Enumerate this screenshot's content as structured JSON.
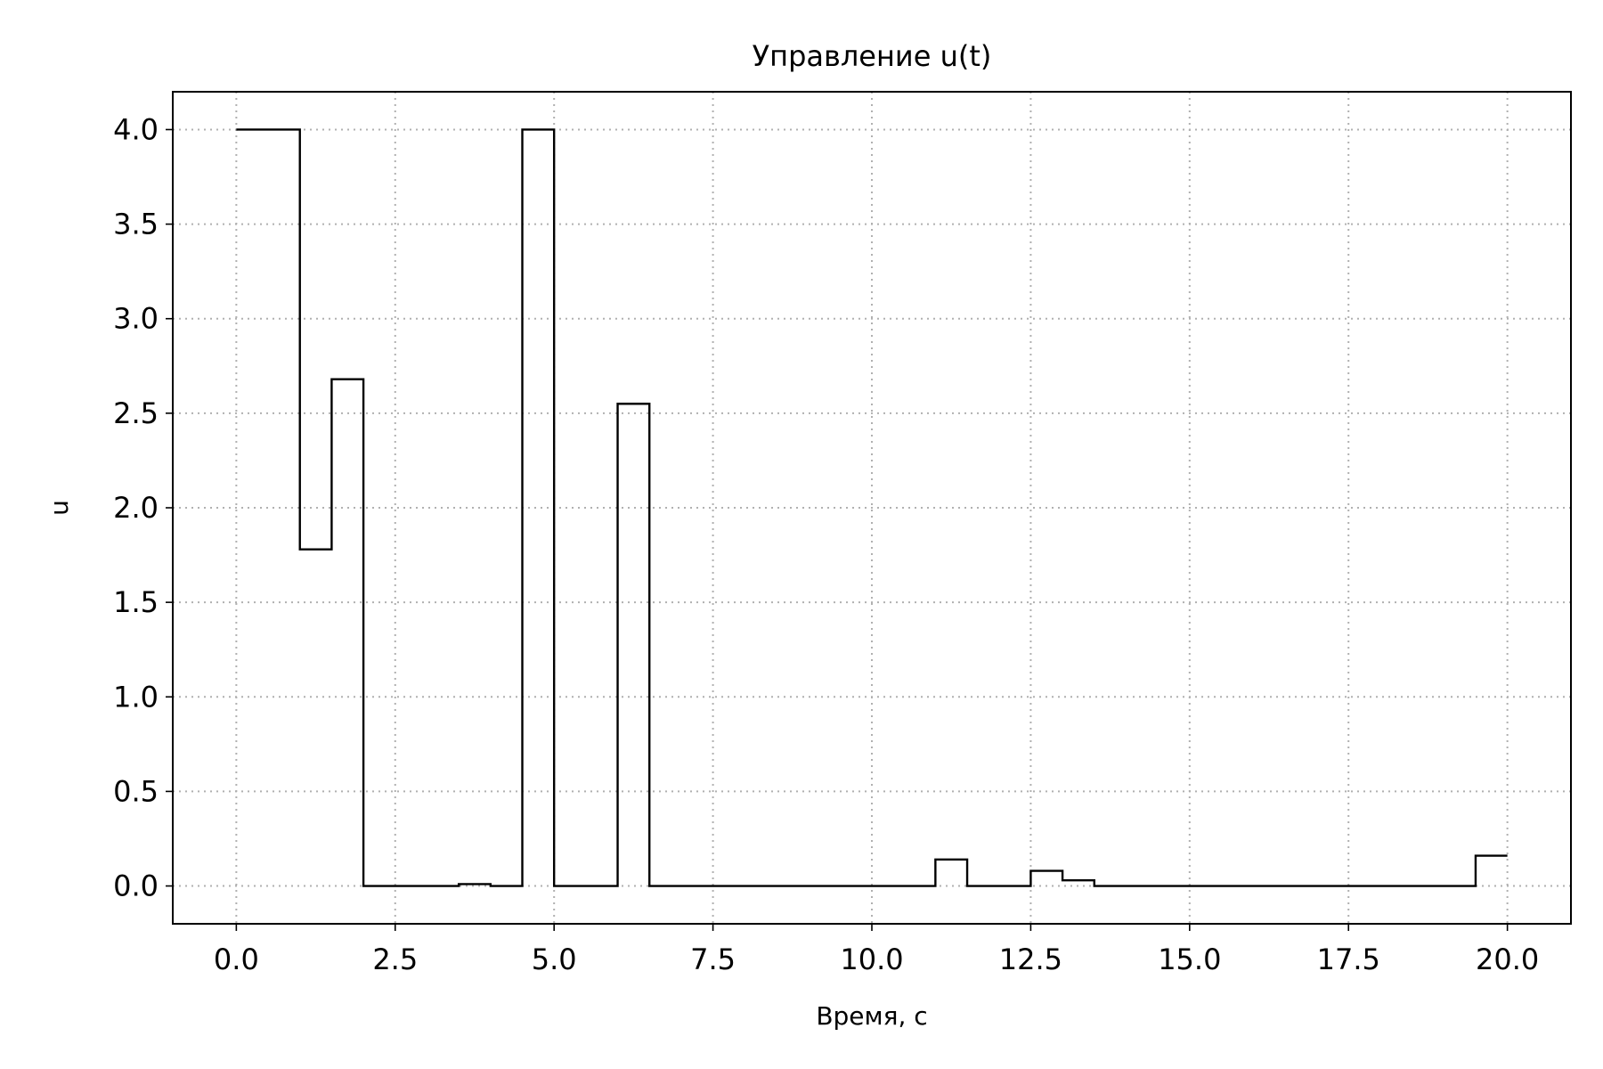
{
  "chart_data": {
    "type": "line",
    "drawstyle": "steps-post",
    "title": "Управление u(t)",
    "xlabel": "Время, с",
    "ylabel": "u",
    "xlim": [
      -1.0,
      21.0
    ],
    "ylim": [
      -0.2,
      4.2
    ],
    "xticks": [
      0.0,
      2.5,
      5.0,
      7.5,
      10.0,
      12.5,
      15.0,
      17.5,
      20.0
    ],
    "xtick_labels": [
      "0.0",
      "2.5",
      "5.0",
      "7.5",
      "10.0",
      "12.5",
      "15.0",
      "17.5",
      "20.0"
    ],
    "yticks": [
      0.0,
      0.5,
      1.0,
      1.5,
      2.0,
      2.5,
      3.0,
      3.5,
      4.0
    ],
    "ytick_labels": [
      "0.0",
      "0.5",
      "1.0",
      "1.5",
      "2.0",
      "2.5",
      "3.0",
      "3.5",
      "4.0"
    ],
    "grid": true,
    "color": "#000000",
    "series": [
      {
        "x": [
          0.0,
          0.5,
          1.0,
          1.5,
          2.0,
          2.5,
          3.0,
          3.5,
          4.0,
          4.5,
          5.0,
          5.5,
          6.0,
          6.5,
          7.0,
          7.5,
          8.0,
          8.5,
          9.0,
          9.5,
          10.0,
          10.5,
          11.0,
          11.5,
          12.0,
          12.5,
          13.0,
          13.5,
          14.0,
          14.5,
          15.0,
          15.5,
          16.0,
          16.5,
          17.0,
          17.5,
          18.0,
          18.5,
          19.0,
          19.5,
          20.0
        ],
        "y": [
          4.0,
          4.0,
          1.78,
          2.68,
          0.0,
          0.0,
          0.0,
          0.01,
          0.0,
          4.0,
          0.0,
          0.0,
          2.55,
          0.0,
          0.0,
          0.0,
          0.0,
          0.0,
          0.0,
          0.0,
          0.0,
          0.0,
          0.14,
          0.0,
          0.0,
          0.08,
          0.03,
          0.0,
          0.0,
          0.0,
          0.0,
          0.0,
          0.0,
          0.0,
          0.0,
          0.0,
          0.0,
          0.0,
          0.0,
          0.16,
          0.16
        ]
      }
    ]
  }
}
